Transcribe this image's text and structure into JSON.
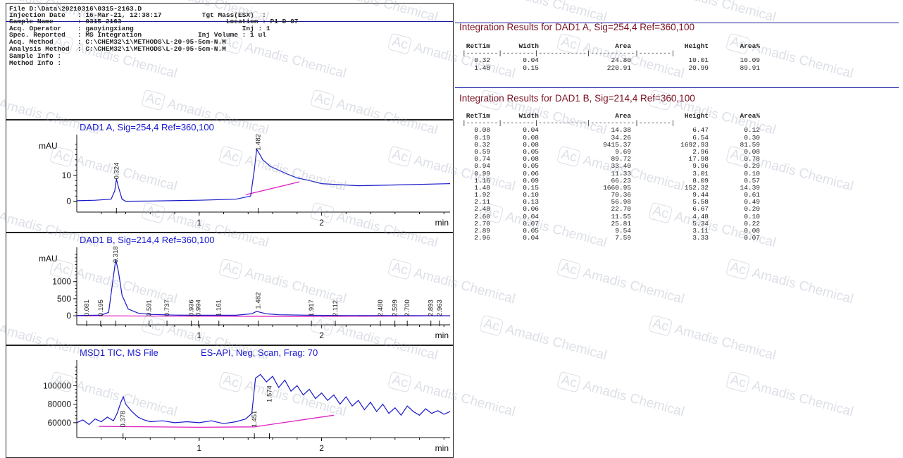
{
  "header": {
    "lines": [
      "File D:\\Data\\20210316\\0315-2163.D",
      "Injection Date   : 16-Mar-21, 12:38:17          Tgt Mass(ESX)  :",
      "Sample Name      : 0315-2163                          Location : P1-D-07",
      "Acq. Operator    : gaoyingxiang                           Inj : 1",
      "Spec. Reported   : MS Integration              Inj Volume : 1 ul",
      "Acq. Method      : C:\\CHEM32\\1\\METHODS\\L-20-95-5cm-N.M",
      "Analysis Method  : C:\\CHEM32\\1\\METHODS\\L-20-95-5cm-N.M",
      "Sample Info :",
      "Method Info :"
    ]
  },
  "watermark": {
    "badge": "Ac",
    "text": "Amadis Chemical"
  },
  "chart_data": [
    {
      "type": "line",
      "title": "DAD1 A, Sig=254,4 Ref=360,100",
      "ylabel": "mAU",
      "xlabel": "min",
      "xlim": [
        0.0,
        3.05
      ],
      "ylim": [
        -2,
        23
      ],
      "xticks": [
        "1",
        "2"
      ],
      "yticks": [
        "0",
        "10"
      ],
      "grid": false,
      "peak_labels": [
        {
          "x": 0.324,
          "text": "0.324",
          "y": 8.5
        },
        {
          "x": 1.482,
          "text": "1.482",
          "y": 19.5
        }
      ],
      "series": [
        {
          "x": [
            0.0,
            0.15,
            0.28,
            0.31,
            0.324,
            0.34,
            0.37,
            0.4,
            0.6,
            1.0,
            1.3,
            1.42,
            1.45,
            1.47,
            1.49,
            1.52,
            1.58,
            1.65,
            1.72,
            1.8,
            1.9,
            2.0,
            2.3,
            2.6,
            3.05
          ],
          "y": [
            0.2,
            0.4,
            0.8,
            4.0,
            8.6,
            5.5,
            0.8,
            0.0,
            0.1,
            0.4,
            0.8,
            2.0,
            12.0,
            20.0,
            18.5,
            16.0,
            13.5,
            12.0,
            10.5,
            9.0,
            8.0,
            6.8,
            6.0,
            6.3,
            6.8
          ]
        }
      ],
      "baseline": {
        "x": [
          1.38,
          1.82
        ],
        "y": [
          2.5,
          7.5
        ]
      }
    },
    {
      "type": "line",
      "title": "DAD1 B, Sig=214,4 Ref=360,100",
      "ylabel": "mAU",
      "xlabel": "min",
      "xlim": [
        0.0,
        3.05
      ],
      "ylim": [
        -100,
        1800
      ],
      "xticks": [
        "1",
        "2"
      ],
      "yticks": [
        "0",
        "500",
        "1000"
      ],
      "grid": false,
      "peak_labels": [
        {
          "x": 0.081,
          "text": "0.081"
        },
        {
          "x": 0.195,
          "text": "0.195"
        },
        {
          "x": 0.318,
          "text": "0.318",
          "y": 1550
        },
        {
          "x": 0.591,
          "text": "0.591"
        },
        {
          "x": 0.737,
          "text": "0.737"
        },
        {
          "x": 0.936,
          "text": "0.936"
        },
        {
          "x": 0.994,
          "text": "0.994"
        },
        {
          "x": 1.161,
          "text": "1.161"
        },
        {
          "x": 1.482,
          "text": "1.482",
          "y": 200
        },
        {
          "x": 1.917,
          "text": "1.917"
        },
        {
          "x": 2.112,
          "text": "2.112"
        },
        {
          "x": 2.48,
          "text": "2.480"
        },
        {
          "x": 2.599,
          "text": "2.599"
        },
        {
          "x": 2.7,
          "text": "2.700"
        },
        {
          "x": 2.893,
          "text": "2.893"
        },
        {
          "x": 2.963,
          "text": "2.963"
        }
      ],
      "series": [
        {
          "x": [
            0.0,
            0.2,
            0.26,
            0.29,
            0.318,
            0.34,
            0.37,
            0.42,
            0.5,
            0.6,
            0.8,
            1.0,
            1.3,
            1.43,
            1.47,
            1.5,
            1.55,
            1.65,
            1.9,
            2.2,
            2.5,
            2.8,
            3.05
          ],
          "y": [
            10,
            20,
            100,
            900,
            1650,
            1300,
            600,
            200,
            80,
            40,
            20,
            15,
            15,
            60,
            130,
            100,
            60,
            30,
            15,
            8,
            5,
            3,
            2
          ]
        }
      ],
      "baseline": {
        "x": [
          0.0,
          1.9,
          3.05
        ],
        "y": [
          0,
          -20,
          0
        ]
      }
    },
    {
      "type": "line",
      "title": "MSD1 TIC, MS File",
      "subtitle": "ES-API, Neg, Scan, Frag: 70",
      "xlabel": "min",
      "xlim": [
        0.0,
        3.05
      ],
      "ylim": [
        50000,
        120000
      ],
      "xticks": [
        "1",
        "2"
      ],
      "yticks": [
        "60000",
        "80000",
        "100000"
      ],
      "grid": false,
      "peak_labels": [
        {
          "x": 0.378,
          "text": "0.378",
          "y": 55000
        },
        {
          "x": 1.451,
          "text": "1.451",
          "y": 55000
        },
        {
          "x": 1.574,
          "text": "1.574",
          "y": 82000
        }
      ],
      "series": [
        {
          "x": [
            0.0,
            0.05,
            0.1,
            0.15,
            0.2,
            0.25,
            0.3,
            0.33,
            0.36,
            0.38,
            0.4,
            0.45,
            0.5,
            0.55,
            0.6,
            0.7,
            0.8,
            0.9,
            1.0,
            1.1,
            1.2,
            1.3,
            1.38,
            1.43,
            1.46,
            1.5,
            1.55,
            1.6,
            1.65,
            1.7,
            1.75,
            1.8,
            1.85,
            1.9,
            1.95,
            2.0,
            2.05,
            2.1,
            2.15,
            2.2,
            2.25,
            2.3,
            2.35,
            2.4,
            2.45,
            2.5,
            2.55,
            2.6,
            2.65,
            2.7,
            2.75,
            2.8,
            2.85,
            2.9,
            2.95,
            3.0,
            3.05
          ],
          "y": [
            60000,
            63000,
            58000,
            64000,
            61000,
            66000,
            62000,
            70000,
            82000,
            88000,
            80000,
            72000,
            66000,
            63000,
            61000,
            62000,
            60000,
            61000,
            60000,
            62000,
            59000,
            61000,
            64000,
            70000,
            108000,
            112000,
            104000,
            110000,
            98000,
            106000,
            94000,
            100000,
            90000,
            96000,
            86000,
            92000,
            84000,
            90000,
            80000,
            88000,
            78000,
            84000,
            74000,
            82000,
            72000,
            80000,
            70000,
            76000,
            68000,
            78000,
            72000,
            68000,
            75000,
            70000,
            73000,
            69000,
            72000
          ]
        }
      ],
      "baseline": {
        "x": [
          0.18,
          1.0,
          1.45,
          2.1
        ],
        "y": [
          56000,
          55000,
          55500,
          68000
        ]
      }
    }
  ],
  "results": {
    "title_a": "Integration Results for DAD1 A, Sig=254,4 Ref=360,100",
    "title_b": "Integration Results for DAD1 B, Sig=214,4 Ref=360,100",
    "headers": [
      "RetTim",
      "Width",
      "Area",
      "Height",
      "Area%"
    ],
    "separator": "|--------|--------|------------|-----------|--------|",
    "rows_a": [
      [
        "0.32",
        "0.04",
        "24.80",
        "10.01",
        "10.09"
      ],
      [
        "1.48",
        "0.15",
        "220.91",
        "20.99",
        "89.91"
      ]
    ],
    "rows_b": [
      [
        "0.08",
        "0.04",
        "14.38",
        "6.47",
        "0.12"
      ],
      [
        "0.19",
        "0.08",
        "34.26",
        "6.54",
        "0.30"
      ],
      [
        "0.32",
        "0.08",
        "9415.37",
        "1692.93",
        "81.59"
      ],
      [
        "0.59",
        "0.05",
        "9.69",
        "2.96",
        "0.08"
      ],
      [
        "0.74",
        "0.08",
        "89.72",
        "17.98",
        "0.78"
      ],
      [
        "0.94",
        "0.05",
        "33.40",
        "9.96",
        "0.29"
      ],
      [
        "0.99",
        "0.06",
        "11.33",
        "3.01",
        "0.10"
      ],
      [
        "1.16",
        "0.09",
        "66.23",
        "8.09",
        "0.57"
      ],
      [
        "1.48",
        "0.15",
        "1660.95",
        "152.32",
        "14.39"
      ],
      [
        "1.92",
        "0.10",
        "70.36",
        "9.44",
        "0.61"
      ],
      [
        "2.11",
        "0.13",
        "56.98",
        "5.58",
        "0.49"
      ],
      [
        "2.48",
        "0.06",
        "22.70",
        "6.67",
        "0.20"
      ],
      [
        "2.60",
        "0.04",
        "11.55",
        "4.48",
        "0.10"
      ],
      [
        "2.70",
        "0.07",
        "25.81",
        "5.34",
        "0.22"
      ],
      [
        "2.89",
        "0.05",
        "9.54",
        "3.11",
        "0.08"
      ],
      [
        "2.96",
        "0.04",
        "7.59",
        "3.33",
        "0.07"
      ]
    ]
  }
}
